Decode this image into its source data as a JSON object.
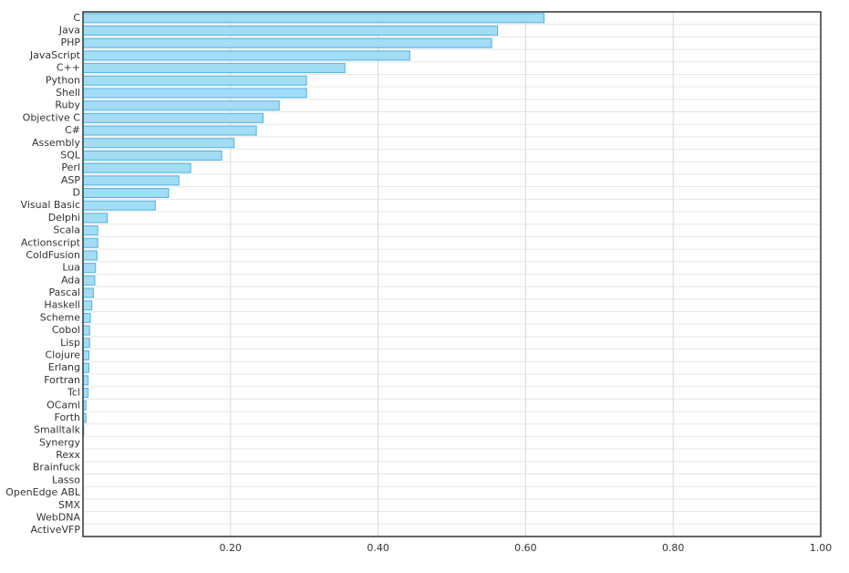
{
  "chart_data": {
    "type": "barh",
    "categories": [
      "C",
      "Java",
      "PHP",
      "JavaScript",
      "C++",
      "Python",
      "Shell",
      "Ruby",
      "Objective C",
      "C#",
      "Assembly",
      "SQL",
      "Perl",
      "ASP",
      "D",
      "Visual Basic",
      "Delphi",
      "Scala",
      "Actionscript",
      "ColdFusion",
      "Lua",
      "Ada",
      "Pascal",
      "Haskell",
      "Scheme",
      "Cobol",
      "Lisp",
      "Clojure",
      "Erlang",
      "Fortran",
      "Tcl",
      "OCaml",
      "Forth",
      "Smalltalk",
      "Synergy",
      "Rexx",
      "Brainfuck",
      "Lasso",
      "OpenEdge ABL",
      "SMX",
      "WebDNA",
      "ActiveVFP"
    ],
    "values": [
      0.625,
      0.562,
      0.554,
      0.443,
      0.355,
      0.303,
      0.303,
      0.266,
      0.244,
      0.235,
      0.205,
      0.188,
      0.146,
      0.13,
      0.116,
      0.098,
      0.033,
      0.02,
      0.02,
      0.019,
      0.017,
      0.016,
      0.014,
      0.012,
      0.01,
      0.009,
      0.009,
      0.008,
      0.008,
      0.007,
      0.007,
      0.004,
      0.004,
      0.001,
      0,
      0,
      0,
      0,
      0,
      0,
      0,
      0
    ],
    "color": "#a3dcf5",
    "edge_color": "#4cb2df",
    "xlim": [
      0,
      1
    ],
    "xticks": [
      {
        "value": 0.2,
        "label": "0.20"
      },
      {
        "value": 0.4,
        "label": "0.40"
      },
      {
        "value": 0.6,
        "label": "0.60"
      },
      {
        "value": 0.8,
        "label": "0.80"
      },
      {
        "value": 1.0,
        "label": "1.00"
      }
    ],
    "grid": true
  }
}
